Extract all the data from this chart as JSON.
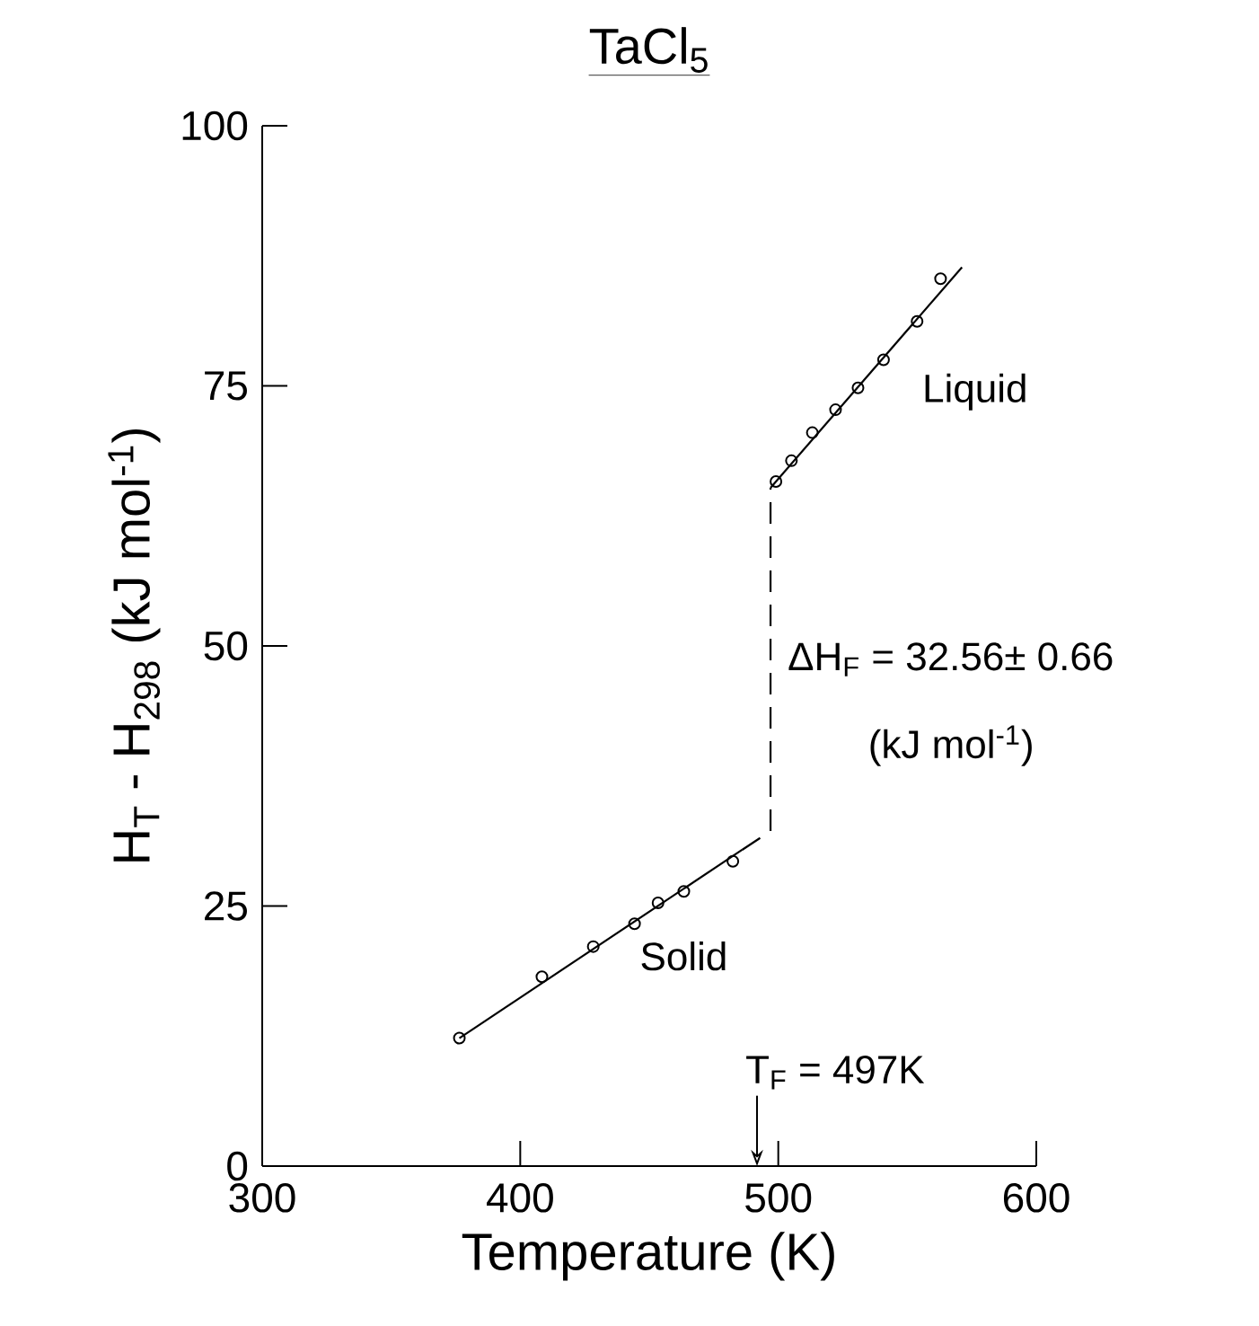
{
  "chart_data": {
    "type": "scatter",
    "title": "TaCl$_{5}$",
    "xlabel": "Temperature (K)",
    "ylabel": "H$_{T}$ - H$_{298}$ (kJ mol$^{-1}$)",
    "xlim": [
      300,
      600
    ],
    "ylim": [
      0,
      100
    ],
    "xticks": [
      300,
      400,
      500,
      600
    ],
    "yticks": [
      0,
      25,
      50,
      75,
      100
    ],
    "series": [
      {
        "marker": "circle",
        "color": "#000000",
        "x": [
          376.4,
          408.4,
          428.3,
          444.3,
          453.4,
          463.4,
          482.4,
          499.1,
          505.1,
          513.2,
          522.2,
          530.9,
          540.8,
          553.8,
          562.9
        ],
        "values": [
          12.3,
          18.2,
          21.1,
          23.3,
          25.3,
          26.4,
          29.3,
          65.8,
          67.8,
          70.5,
          72.7,
          74.8,
          77.5,
          81.2,
          85.3
        ]
      },
      {
        "type": "line",
        "name": "Solid",
        "color": "#000000",
        "line_style": "solid",
        "x": [
          376.4,
          486
        ],
        "values": [
          12.3,
          30.4
        ]
      },
      {
        "type": "line",
        "color": "#000000",
        "line_style": "dashed",
        "x": [
          486,
          497,
          497
        ],
        "values": [
          30.4,
          32.2,
          65.2
        ]
      },
      {
        "type": "line",
        "name": "Liquid",
        "color": "#000000",
        "line_style": "solid",
        "x": [
          497,
          571.2
        ],
        "values": [
          65.2,
          86.4
        ]
      }
    ],
    "annotations": [
      {
        "text": "ΔH$_{F}$ = 32.56± 0.66",
        "x": 497,
        "y": 48.7
      },
      "(kJ mol$^{-1}$)",
      "T$_{F}$ = 497K"
    ]
  }
}
